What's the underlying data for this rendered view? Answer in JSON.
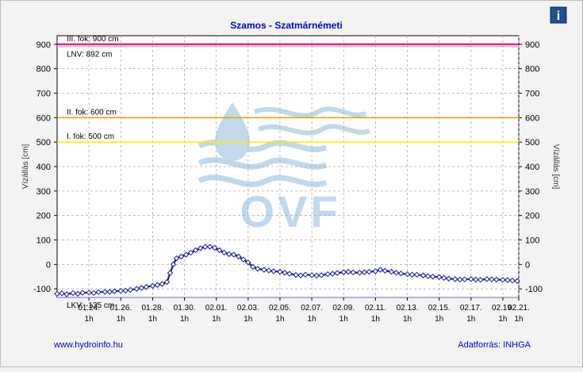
{
  "title": "Szamos - Szatmárnémeti",
  "info_icon": "info-icon",
  "footer": {
    "left_link": "www.hydroinfo.hu",
    "right_source": "Adatforrás: INHGA"
  },
  "colors": {
    "title": "#0000cc",
    "series": "#1a1aa0",
    "threshold_900": "#e0007a",
    "threshold_lnv": "#ff99cc",
    "threshold_600": "#e0a800",
    "threshold_500": "#ffee00",
    "threshold_lkv": "#9a9ad4",
    "watermark": "#b7d2ea",
    "footer": "#0000cc"
  },
  "chart_data": {
    "type": "line",
    "ylabel_left": "Vízállás [cm]",
    "ylabel_right": "Vízállás [cm]",
    "ylim": [
      -135,
      935
    ],
    "xlim": [
      22.0,
      51.0
    ],
    "grid": true,
    "yticks": [
      -100,
      0,
      100,
      200,
      300,
      400,
      500,
      600,
      700,
      800,
      900
    ],
    "xticks": [
      {
        "x": 24,
        "date": "01.24.",
        "time": "1h"
      },
      {
        "x": 26,
        "date": "01.26.",
        "time": "1h"
      },
      {
        "x": 28,
        "date": "01.28.",
        "time": "1h"
      },
      {
        "x": 30,
        "date": "01.30.",
        "time": "1h"
      },
      {
        "x": 32,
        "date": "02.01.",
        "time": "1h"
      },
      {
        "x": 34,
        "date": "02.03.",
        "time": "1h"
      },
      {
        "x": 36,
        "date": "02.05.",
        "time": "1h"
      },
      {
        "x": 38,
        "date": "02.07.",
        "time": "1h"
      },
      {
        "x": 40,
        "date": "02.09.",
        "time": "1h"
      },
      {
        "x": 42,
        "date": "02.11.",
        "time": "1h"
      },
      {
        "x": 44,
        "date": "02.13.",
        "time": "1h"
      },
      {
        "x": 46,
        "date": "02.15.",
        "time": "1h"
      },
      {
        "x": 48,
        "date": "02.17.",
        "time": "1h"
      },
      {
        "x": 50,
        "date": "02.19.",
        "time": "1h"
      },
      {
        "x": 52,
        "date": "02.21.",
        "time": "1h"
      }
    ],
    "thresholds": [
      {
        "label": "III. fok: 900 cm",
        "value": 900,
        "color": "#e0007a",
        "label_pos": "above"
      },
      {
        "label": "LNV: 892 cm",
        "value": 892,
        "color": "#ff99cc",
        "label_pos": "below"
      },
      {
        "label": "II. fok: 600 cm",
        "value": 600,
        "color": "#e0a800",
        "label_pos": "above"
      },
      {
        "label": "I. fok: 500 cm",
        "value": 500,
        "color": "#ffee00",
        "label_pos": "above"
      },
      {
        "label": "LKV: -135 cm",
        "value": -135,
        "color": "#9a9ad4",
        "label_pos": "below"
      }
    ],
    "series": [
      {
        "points": [
          [
            22.0,
            -120
          ],
          [
            22.3,
            -118
          ],
          [
            22.6,
            -122
          ],
          [
            23.0,
            -117
          ],
          [
            23.3,
            -120
          ],
          [
            23.6,
            -116
          ],
          [
            24.0,
            -115
          ],
          [
            24.3,
            -117
          ],
          [
            24.6,
            -113
          ],
          [
            25.0,
            -112
          ],
          [
            25.3,
            -112
          ],
          [
            25.6,
            -110
          ],
          [
            26.0,
            -108
          ],
          [
            26.3,
            -107
          ],
          [
            26.6,
            -104
          ],
          [
            27.0,
            -100
          ],
          [
            27.3,
            -96
          ],
          [
            27.6,
            -92
          ],
          [
            28.0,
            -88
          ],
          [
            28.3,
            -84
          ],
          [
            28.6,
            -80
          ],
          [
            28.9,
            -72
          ],
          [
            29.1,
            -35
          ],
          [
            29.3,
            0
          ],
          [
            29.5,
            25
          ],
          [
            29.8,
            32
          ],
          [
            30.1,
            40
          ],
          [
            30.4,
            48
          ],
          [
            30.7,
            58
          ],
          [
            31.0,
            66
          ],
          [
            31.3,
            72
          ],
          [
            31.6,
            72
          ],
          [
            31.9,
            68
          ],
          [
            32.2,
            58
          ],
          [
            32.5,
            48
          ],
          [
            32.8,
            42
          ],
          [
            33.1,
            40
          ],
          [
            33.4,
            32
          ],
          [
            33.7,
            20
          ],
          [
            34.0,
            8
          ],
          [
            34.3,
            -10
          ],
          [
            34.6,
            -18
          ],
          [
            35.0,
            -22
          ],
          [
            35.3,
            -25
          ],
          [
            35.6,
            -28
          ],
          [
            36.0,
            -30
          ],
          [
            36.3,
            -34
          ],
          [
            36.6,
            -38
          ],
          [
            37.0,
            -43
          ],
          [
            37.3,
            -45
          ],
          [
            37.6,
            -42
          ],
          [
            38.0,
            -44
          ],
          [
            38.3,
            -46
          ],
          [
            38.6,
            -44
          ],
          [
            39.0,
            -40
          ],
          [
            39.3,
            -38
          ],
          [
            39.6,
            -35
          ],
          [
            40.0,
            -32
          ],
          [
            40.3,
            -30
          ],
          [
            40.6,
            -33
          ],
          [
            41.0,
            -34
          ],
          [
            41.3,
            -32
          ],
          [
            41.6,
            -30
          ],
          [
            42.0,
            -28
          ],
          [
            42.3,
            -22
          ],
          [
            42.6,
            -26
          ],
          [
            43.0,
            -30
          ],
          [
            43.3,
            -34
          ],
          [
            43.6,
            -37
          ],
          [
            44.0,
            -40
          ],
          [
            44.3,
            -42
          ],
          [
            44.6,
            -42
          ],
          [
            45.0,
            -45
          ],
          [
            45.3,
            -48
          ],
          [
            45.6,
            -50
          ],
          [
            46.0,
            -52
          ],
          [
            46.3,
            -55
          ],
          [
            46.6,
            -58
          ],
          [
            47.0,
            -60
          ],
          [
            47.3,
            -62
          ],
          [
            47.6,
            -61
          ],
          [
            48.0,
            -60
          ],
          [
            48.3,
            -62
          ],
          [
            48.6,
            -63
          ],
          [
            49.0,
            -60
          ],
          [
            49.3,
            -61
          ],
          [
            49.6,
            -62
          ],
          [
            50.0,
            -63
          ],
          [
            50.3,
            -64
          ],
          [
            50.6,
            -66
          ],
          [
            50.9,
            -68
          ]
        ]
      }
    ]
  }
}
